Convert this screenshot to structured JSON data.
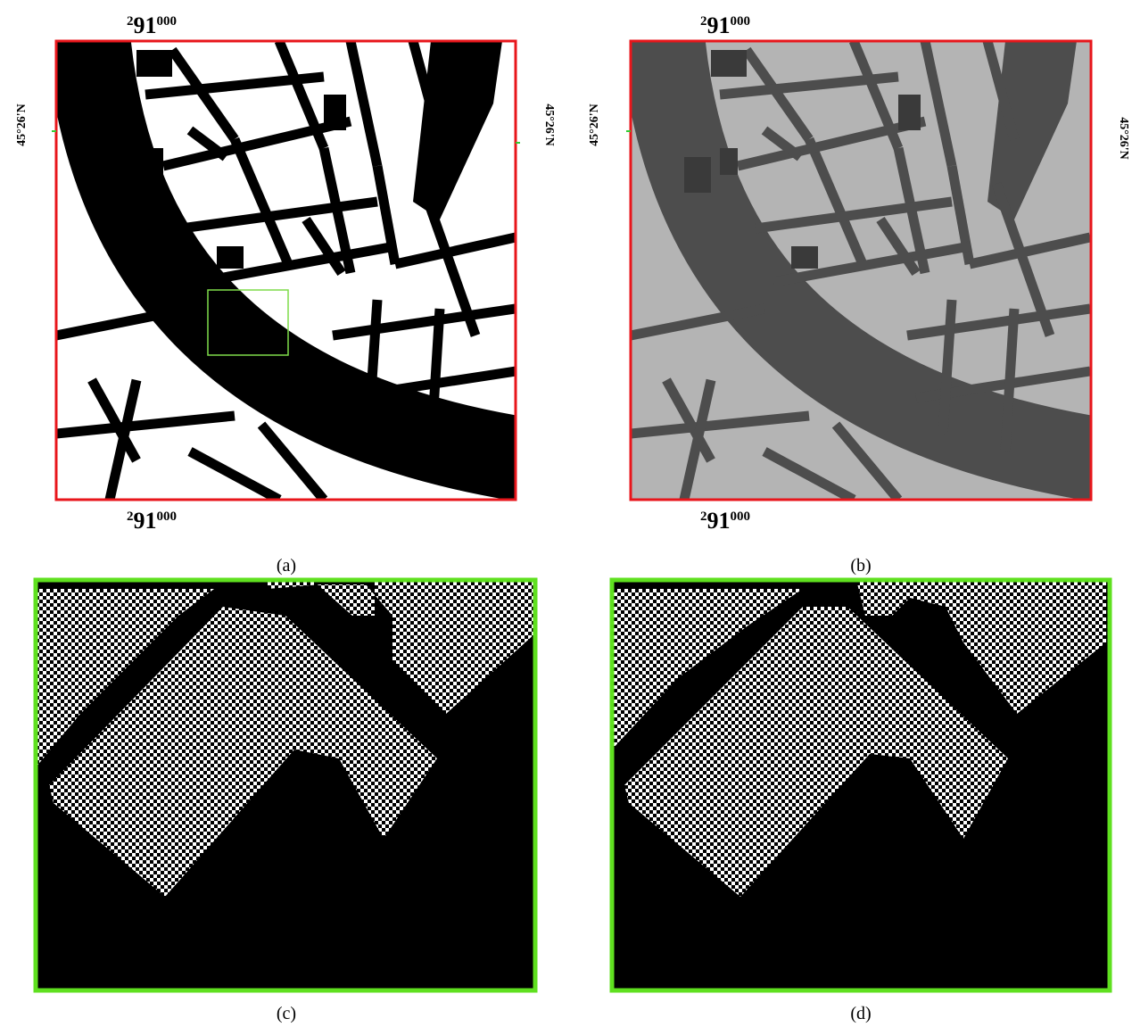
{
  "grid_labels": {
    "easting_prefix": "2",
    "easting_main": "91",
    "easting_suffix": "000",
    "northing": "45°26'N"
  },
  "captions": [
    "(a)",
    "(b)",
    "(c)",
    "(d)"
  ]
}
